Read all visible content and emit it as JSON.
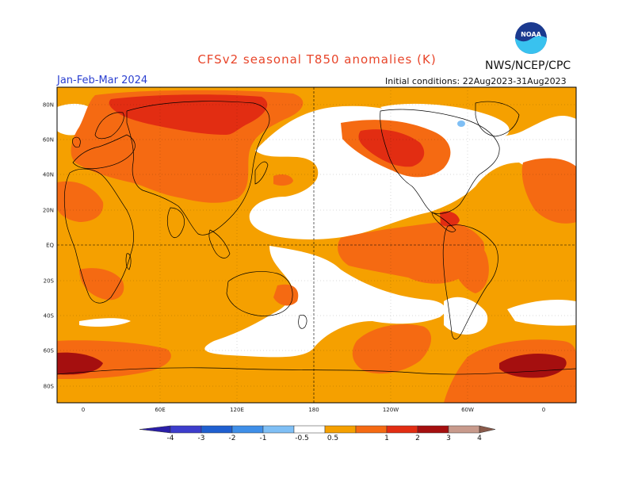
{
  "title": "CFSv2 seasonal T850 anomalies (K)",
  "organization": "NWS/NCEP/CPC",
  "logo_text": "NOAA",
  "period": "Jan-Feb-Mar 2024",
  "initial_conditions": "Initial conditions: 22Aug2023-31Aug2023",
  "lat_labels": [
    "80N",
    "60N",
    "40N",
    "20N",
    "EQ",
    "20S",
    "40S",
    "60S",
    "80S"
  ],
  "lon_labels": [
    "0",
    "60E",
    "120E",
    "180",
    "120W",
    "60W",
    "0"
  ],
  "colorbar": {
    "labels": [
      "-4",
      "-3",
      "-2",
      "-1",
      "-0.5",
      "0.5",
      "1",
      "2",
      "3",
      "4"
    ],
    "colors": [
      "#2a1ea8",
      "#3d3dcc",
      "#1f5fd0",
      "#3f8fe8",
      "#7fbff5",
      "#ffffff",
      "#f5a000",
      "#f56a12",
      "#e22d12",
      "#a50f0f",
      "#c89a8c",
      "#8a5a4a"
    ]
  },
  "palette": {
    "white": "#ffffff",
    "orange": "#f5a000",
    "orange_red": "#f56a12",
    "red": "#e22d12",
    "dark_red": "#a50f0f",
    "light_blue": "#7fbff5"
  }
}
